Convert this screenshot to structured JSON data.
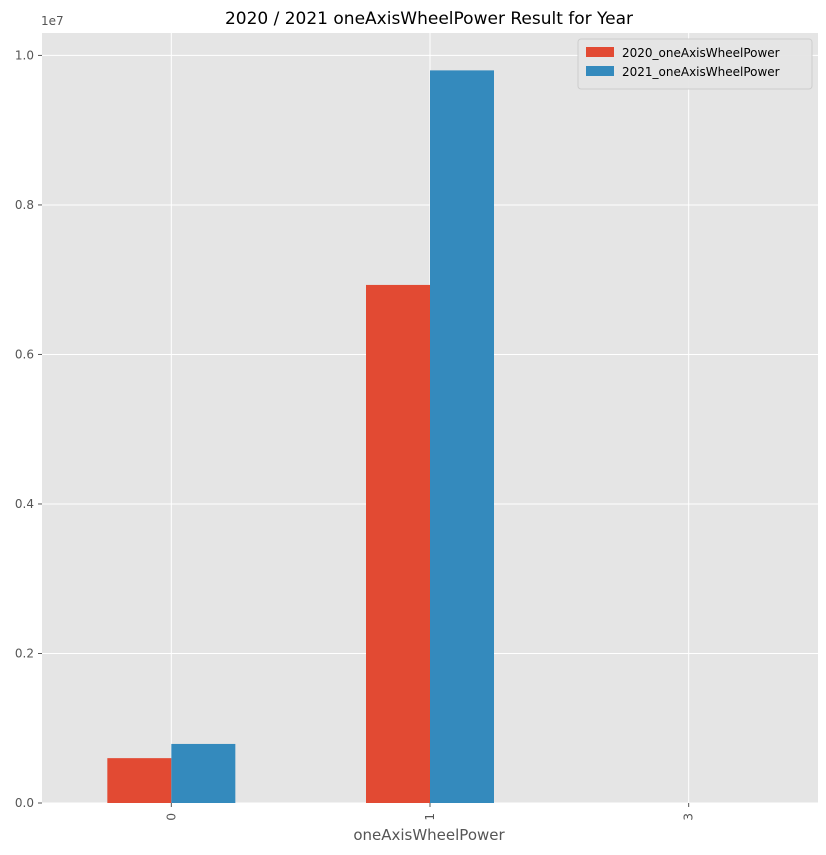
{
  "chart_data": {
    "type": "bar",
    "title": "2020 / 2021 oneAxisWheelPower Result for Year",
    "xlabel": "oneAxisWheelPower",
    "ylabel": "",
    "categories": [
      "0",
      "1",
      "3"
    ],
    "series": [
      {
        "name": "2020_oneAxisWheelPower",
        "color": "#E24A33",
        "values": [
          600000,
          6930000,
          0
        ]
      },
      {
        "name": "2021_oneAxisWheelPower",
        "color": "#348ABD",
        "values": [
          790000,
          9800000,
          0
        ]
      }
    ],
    "ylim": [
      0,
      10300000
    ],
    "yticks": [
      0,
      2000000,
      4000000,
      6000000,
      8000000,
      10000000
    ],
    "ytick_labels": [
      "0.0",
      "0.2",
      "0.4",
      "0.6",
      "0.8",
      "1.0"
    ],
    "y_offset_label": "1e7",
    "grid": true,
    "legend_position": "top-right",
    "background": "#E5E5E5"
  }
}
